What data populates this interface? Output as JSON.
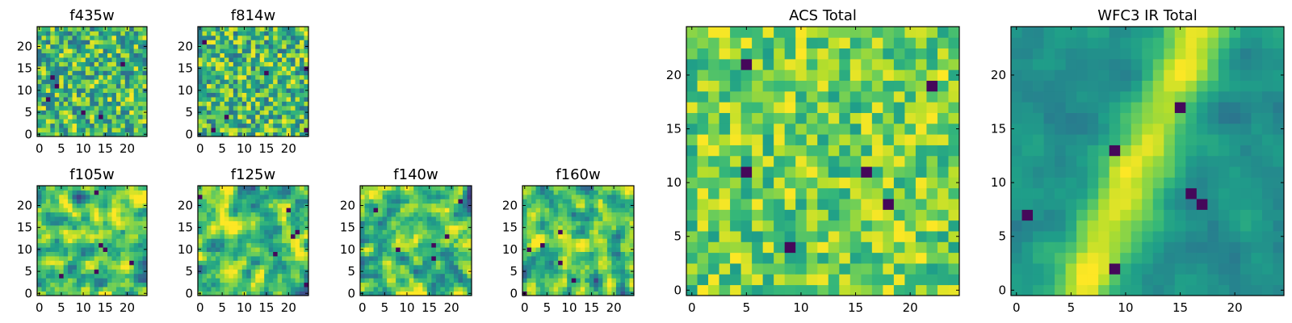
{
  "figure": {
    "background": "#ffffff"
  },
  "chart_data": [
    {
      "type": "heatmap",
      "title": "f435w",
      "seed": 11,
      "style": "noise",
      "xlim": [
        0,
        24
      ],
      "ylim": [
        0,
        24
      ],
      "xticks": [
        0,
        5,
        10,
        15,
        20
      ],
      "yticks": [
        0,
        5,
        10,
        15,
        20
      ],
      "colormap": "viridis"
    },
    {
      "type": "heatmap",
      "title": "f814w",
      "seed": 23,
      "style": "noise",
      "xlim": [
        0,
        24
      ],
      "ylim": [
        0,
        24
      ],
      "xticks": [
        0,
        5,
        10,
        15,
        20
      ],
      "yticks": [
        0,
        5,
        10,
        15,
        20
      ],
      "colormap": "viridis"
    },
    {
      "type": "heatmap",
      "title": "f105w",
      "seed": 37,
      "style": "smooth",
      "xlim": [
        0,
        24
      ],
      "ylim": [
        0,
        24
      ],
      "xticks": [
        0,
        5,
        10,
        15,
        20
      ],
      "yticks": [
        0,
        5,
        10,
        15,
        20
      ],
      "colormap": "viridis"
    },
    {
      "type": "heatmap",
      "title": "f125w",
      "seed": 41,
      "style": "smooth",
      "xlim": [
        0,
        24
      ],
      "ylim": [
        0,
        24
      ],
      "xticks": [
        0,
        5,
        10,
        15,
        20
      ],
      "yticks": [
        0,
        5,
        10,
        15,
        20
      ],
      "colormap": "viridis"
    },
    {
      "type": "heatmap",
      "title": "f140w",
      "seed": 53,
      "style": "smooth",
      "xlim": [
        0,
        24
      ],
      "ylim": [
        0,
        24
      ],
      "xticks": [
        0,
        5,
        10,
        15,
        20
      ],
      "yticks": [
        0,
        5,
        10,
        15,
        20
      ],
      "colormap": "viridis"
    },
    {
      "type": "heatmap",
      "title": "f160w",
      "seed": 67,
      "style": "smooth",
      "xlim": [
        0,
        24
      ],
      "ylim": [
        0,
        24
      ],
      "xticks": [
        0,
        5,
        10,
        15,
        20
      ],
      "yticks": [
        0,
        5,
        10,
        15,
        20
      ],
      "colormap": "viridis"
    },
    {
      "type": "heatmap",
      "title": "ACS Total",
      "seed": 79,
      "style": "bright",
      "xlim": [
        0,
        24
      ],
      "ylim": [
        0,
        24
      ],
      "xticks": [
        0,
        5,
        10,
        15,
        20
      ],
      "yticks": [
        0,
        5,
        10,
        15,
        20
      ],
      "colormap": "viridis"
    },
    {
      "type": "heatmap",
      "title": "WFC3 IR Total",
      "seed": 97,
      "style": "ridge",
      "xlim": [
        0,
        24
      ],
      "ylim": [
        0,
        24
      ],
      "xticks": [
        0,
        5,
        10,
        15,
        20
      ],
      "yticks": [
        0,
        5,
        10,
        15,
        20
      ],
      "colormap": "viridis"
    }
  ]
}
